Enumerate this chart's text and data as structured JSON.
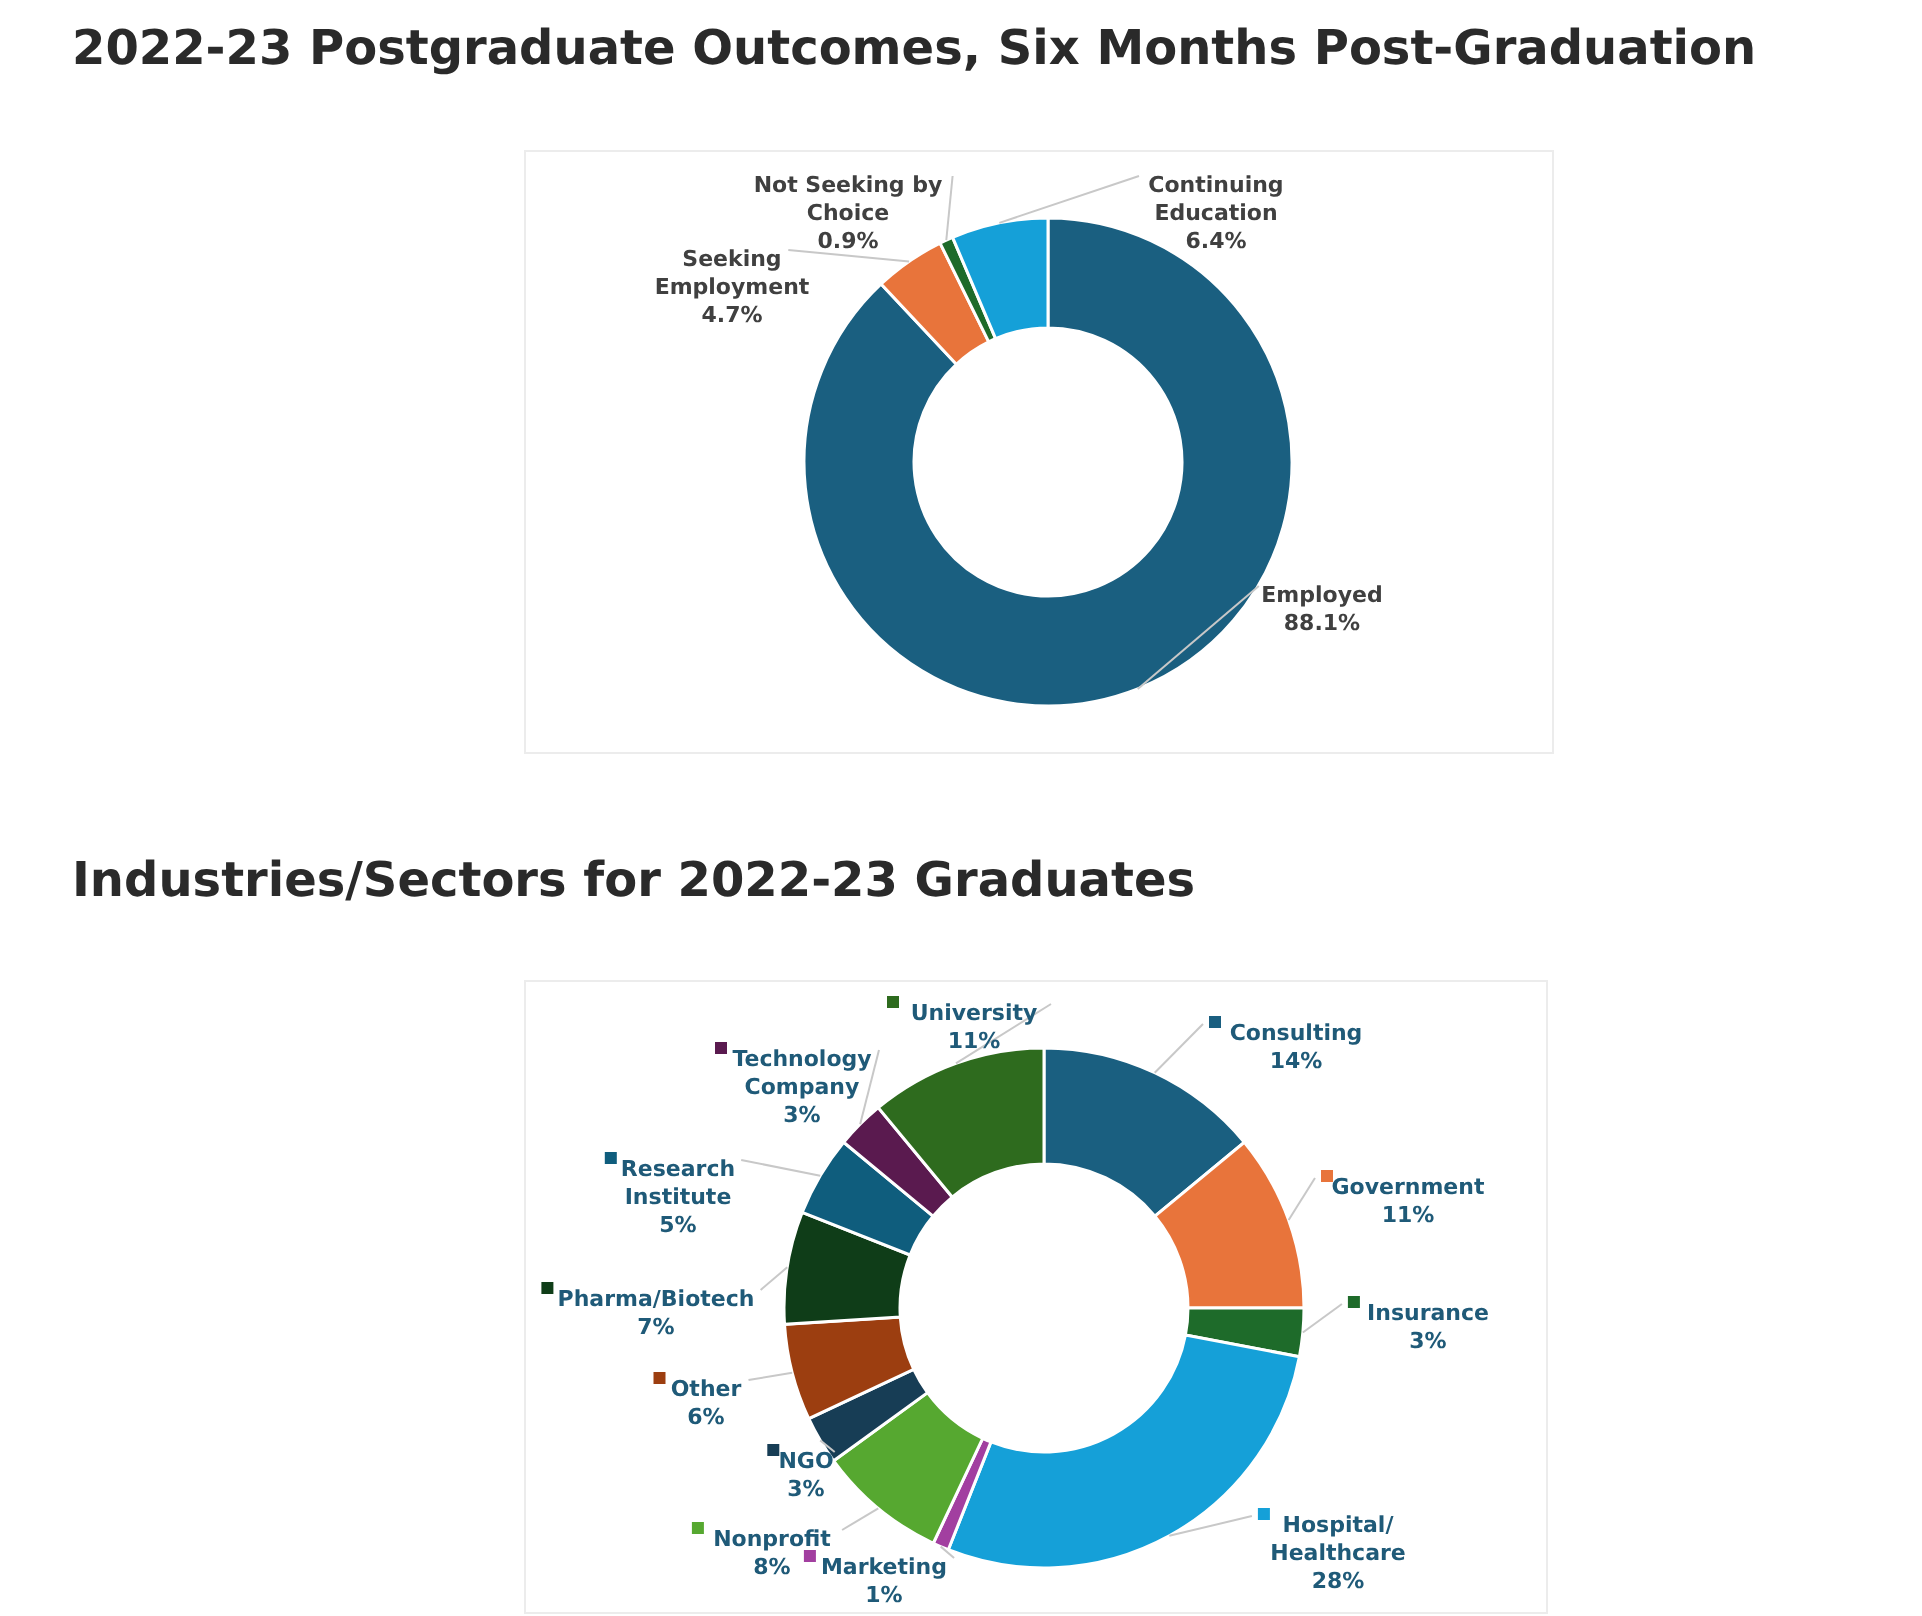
{
  "chart_data": [
    {
      "type": "donut",
      "title": "2022-23 Postgraduate Outcomes, Six Months Post-Graduation",
      "categories": [
        "Employed",
        "Seeking Employment",
        "Not Seeking by Choice",
        "Continuing Education"
      ],
      "values": [
        88.1,
        4.7,
        0.9,
        6.4
      ],
      "value_labels": [
        "88.1%",
        "4.7%",
        "0.9%",
        "6.4%"
      ],
      "colors": [
        "#1a5f80",
        "#e8743b",
        "#1e6b2a",
        "#15a0d8"
      ]
    },
    {
      "type": "donut",
      "title": "Industries/Sectors for 2022-23 Graduates",
      "legend": "top left",
      "categories": [
        "Consulting",
        "Government",
        "Insurance",
        "Hospital/ Healthcare",
        "Marketing",
        "Nonprofit",
        "NGO",
        "Other",
        "Pharma/Biotech",
        "Research Institute",
        "Technology Company",
        "University"
      ],
      "values": [
        14,
        11,
        3,
        28,
        1,
        8,
        3,
        6,
        7,
        5,
        3,
        11
      ],
      "value_labels": [
        "14%",
        "11%",
        "3%",
        "28%",
        "1%",
        "8%",
        "3%",
        "6%",
        "7%",
        "5%",
        "3%",
        "11%"
      ],
      "colors": [
        "#1a5f80",
        "#e8743b",
        "#1e6b2a",
        "#15a0d8",
        "#a23fa0",
        "#56a830",
        "#173d55",
        "#9c3e10",
        "#0f3d18",
        "#0f5d7d",
        "#5a1a4f",
        "#2e6b1e"
      ]
    }
  ]
}
